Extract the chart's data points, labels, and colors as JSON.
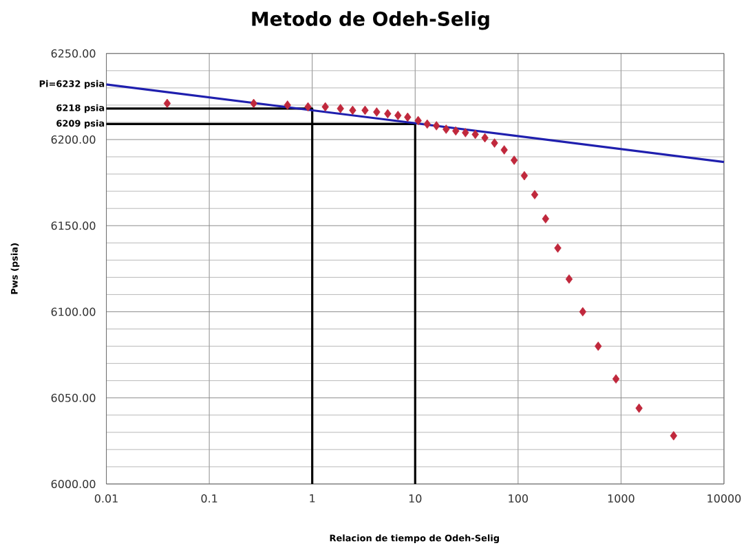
{
  "chart_data": {
    "type": "scatter",
    "title": "Metodo de Odeh-Selig",
    "xlabel": "Relacion de tiempo de Odeh-Selig",
    "ylabel": "Pws (psia)",
    "log": "x",
    "grid": true,
    "marker": "diamond",
    "xlim": [
      0.01,
      10000
    ],
    "xticks": [
      0.01,
      0.1,
      1,
      10,
      100,
      1000,
      10000
    ],
    "ylim": [
      6000,
      6250
    ],
    "yticks": [
      {
        "value": 6000,
        "label": "6000.00"
      },
      {
        "value": 6050,
        "label": "6050.00"
      },
      {
        "value": 6100,
        "label": "6100.00"
      },
      {
        "value": 6150,
        "label": "6150.00"
      },
      {
        "value": 6200,
        "label": "6200.00"
      },
      {
        "value": 6250,
        "label": "6250.00"
      }
    ],
    "series": [
      {
        "color": "#c0283c",
        "x": [
          0.039,
          0.27,
          0.575,
          0.91,
          1.34,
          1.88,
          2.47,
          3.26,
          4.23,
          5.41,
          6.81,
          8.45,
          10.7,
          13.1,
          16.1,
          20,
          24.8,
          30.8,
          38.4,
          47.6,
          59,
          73.3,
          91.6,
          115,
          145,
          185,
          243,
          313,
          425,
          600,
          893,
          1497,
          3243
        ],
        "values": [
          6221,
          6221,
          6220,
          6219,
          6219,
          6218,
          6217,
          6217,
          6216,
          6215,
          6214,
          6213,
          6211,
          6209,
          6208,
          6206,
          6205,
          6204,
          6203,
          6201,
          6198,
          6194,
          6188,
          6179,
          6168,
          6154,
          6137,
          6119,
          6100,
          6080,
          6061,
          6044,
          6028
        ]
      },
      {
        "type": "line",
        "name": "Pi=6232 psia",
        "marker": "none",
        "color": "#1f1fae",
        "x": [
          0.01,
          10000
        ],
        "values": [
          6232,
          6187
        ]
      },
      {
        "type": "line",
        "name": "6218 psia",
        "marker": "none",
        "color": "#000000",
        "x": [
          0.01,
          1,
          1
        ],
        "values": [
          6218,
          6218,
          6000
        ]
      },
      {
        "type": "line",
        "name": "6209 psia",
        "marker": "none",
        "color": "#000000",
        "x": [
          0.01,
          10,
          10
        ],
        "values": [
          6209,
          6209,
          6000
        ]
      }
    ]
  }
}
